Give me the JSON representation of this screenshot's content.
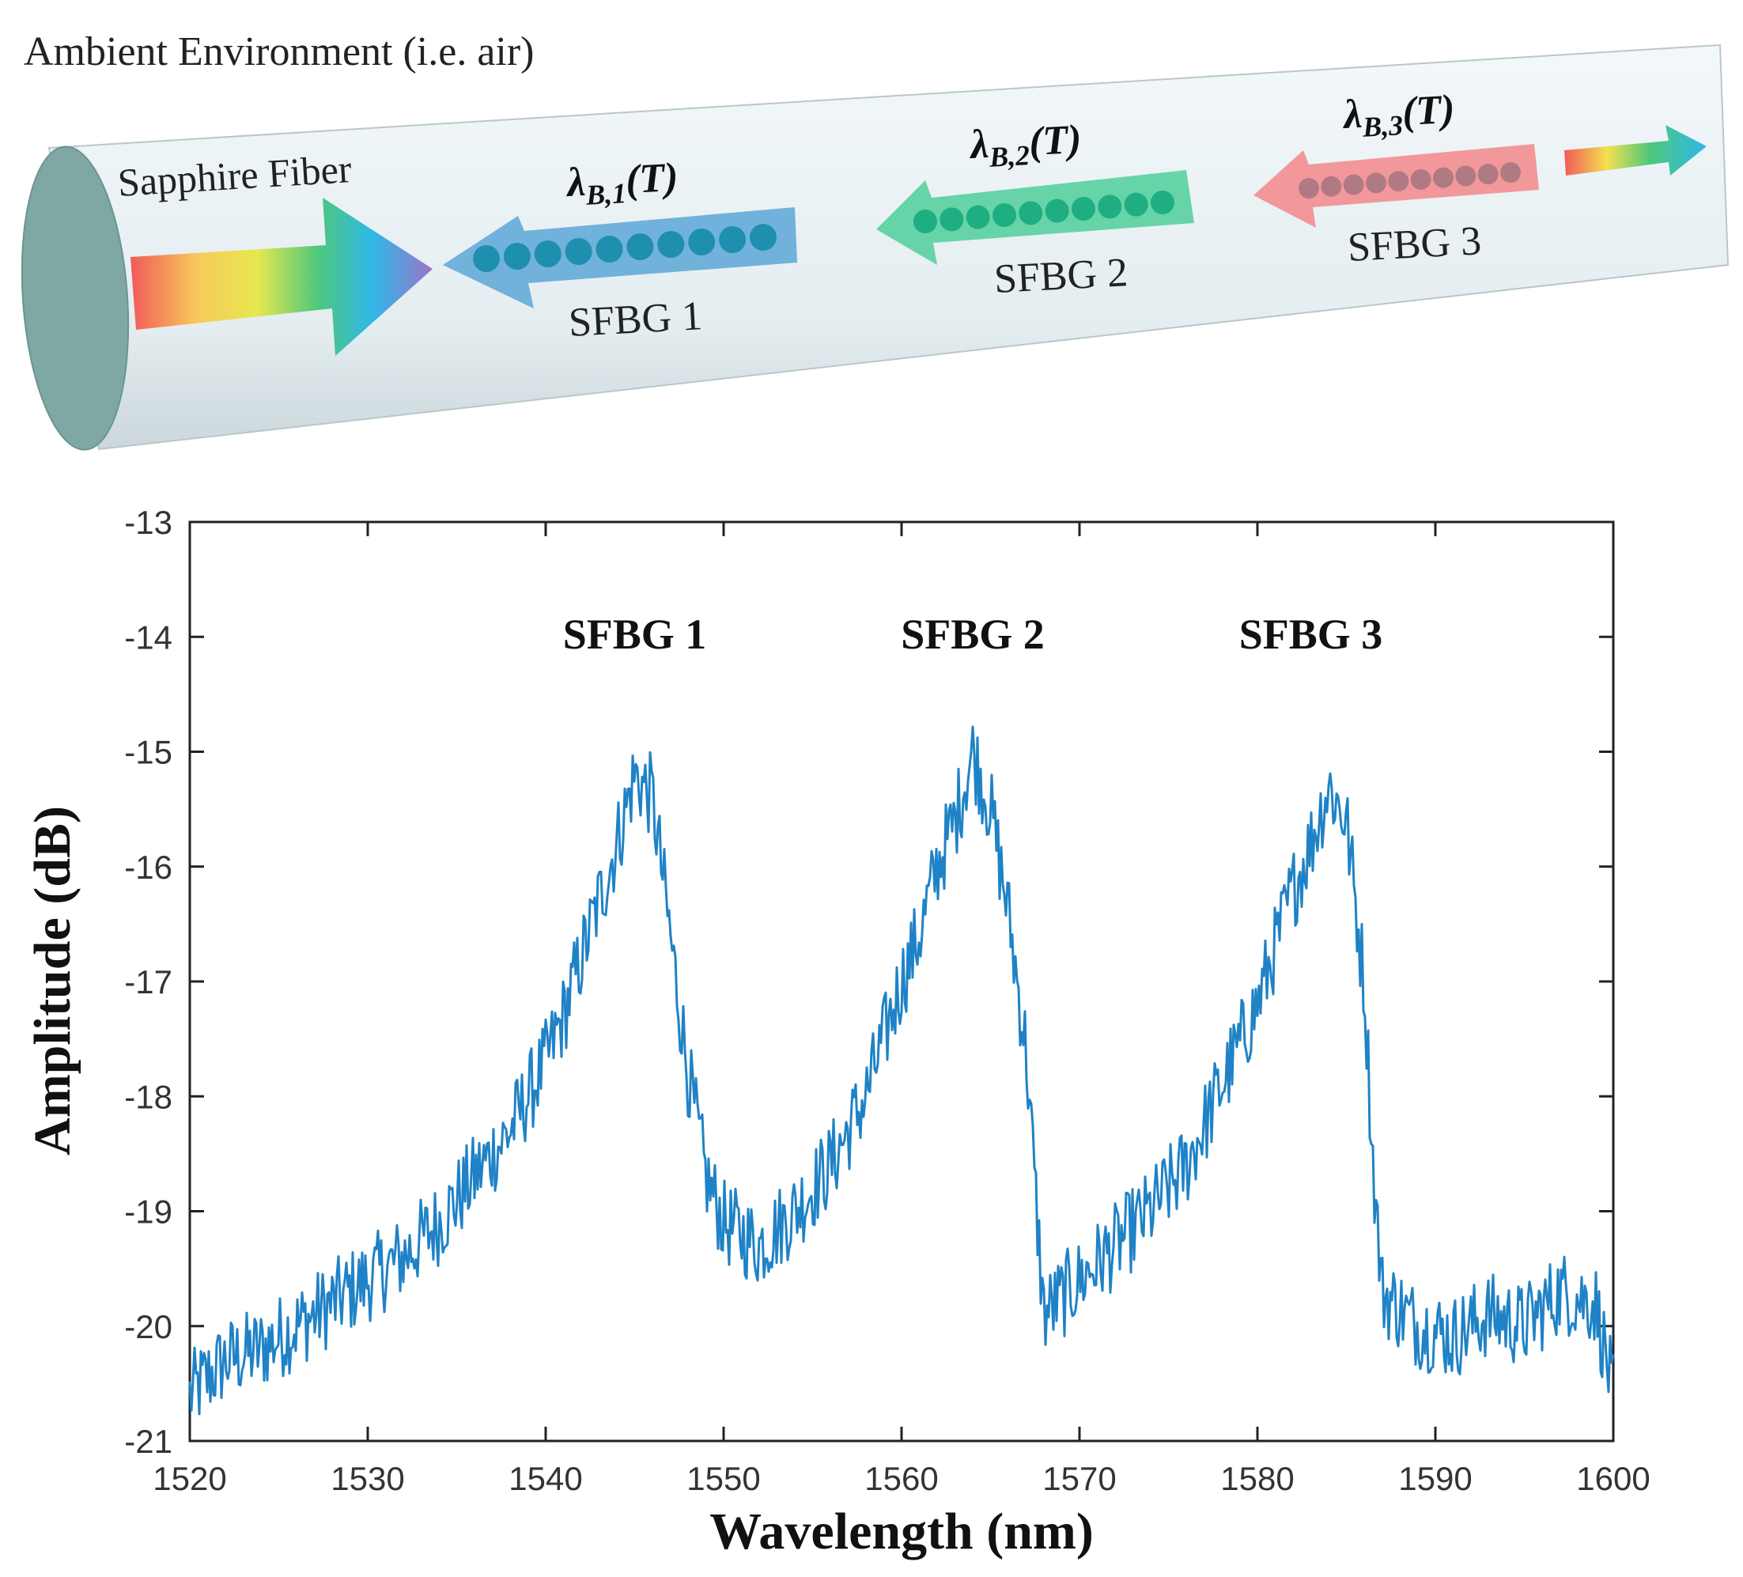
{
  "diagram": {
    "environment_label": "Ambient Environment (i.e. air)",
    "fiber_label": "Sapphire Fiber",
    "gratings": [
      {
        "label": "SFBG 1",
        "symbol": "λ",
        "subscript": "B,1",
        "arg": "(T)",
        "color": "#5aa7d6"
      },
      {
        "label": "SFBG 2",
        "symbol": "λ",
        "subscript": "B,2",
        "arg": "(T)",
        "color": "#4fcf9a"
      },
      {
        "label": "SFBG 3",
        "symbol": "λ",
        "subscript": "B,3",
        "arg": "(T)",
        "color": "#f3878a"
      }
    ],
    "fiber_color": "#e7eff2",
    "fiber_end_color": "#7fa8a4"
  },
  "chart_data": {
    "type": "line",
    "xlabel": "Wavelength (nm)",
    "ylabel": "Amplitude (dB)",
    "xlim": [
      1520,
      1600
    ],
    "ylim": [
      -21,
      -13
    ],
    "xticks": [
      "1520",
      "1530",
      "1540",
      "1550",
      "1560",
      "1570",
      "1580",
      "1590",
      "1600"
    ],
    "yticks": [
      "-13",
      "-14",
      "-15",
      "-16",
      "-17",
      "-18",
      "-19",
      "-20",
      "-21"
    ],
    "grid": false,
    "line_color": "#1f82c6",
    "annotations": [
      {
        "text": "SFBG 1",
        "x": 1545,
        "y": -14.1
      },
      {
        "text": "SFBG 2",
        "x": 1564,
        "y": -14.1
      },
      {
        "text": "SFBG 3",
        "x": 1583,
        "y": -14.1
      }
    ],
    "series": [
      {
        "name": "spectrum",
        "x": [
          1520,
          1522,
          1524,
          1526,
          1528,
          1530,
          1532,
          1534,
          1536,
          1538,
          1540,
          1541,
          1542,
          1543,
          1544,
          1545,
          1546,
          1547,
          1548,
          1549,
          1550,
          1552,
          1554,
          1556,
          1558,
          1560,
          1561,
          1562,
          1563,
          1564,
          1565,
          1566,
          1567,
          1567.5,
          1568,
          1570,
          1572,
          1574,
          1576,
          1578,
          1580,
          1581,
          1582,
          1583,
          1584,
          1585,
          1586,
          1586.5,
          1587,
          1589,
          1591,
          1593,
          1595,
          1597,
          1599,
          1600
        ],
        "values": [
          -20.6,
          -20.3,
          -20.2,
          -20.0,
          -19.8,
          -19.6,
          -19.4,
          -19.1,
          -18.7,
          -18.3,
          -17.7,
          -17.3,
          -16.8,
          -16.3,
          -15.8,
          -15.2,
          -15.4,
          -16.6,
          -17.8,
          -18.7,
          -19.1,
          -19.3,
          -19.0,
          -18.6,
          -18.0,
          -17.0,
          -16.6,
          -16.0,
          -15.6,
          -15.0,
          -15.5,
          -16.4,
          -17.6,
          -18.8,
          -19.9,
          -19.6,
          -19.3,
          -19.0,
          -18.6,
          -17.9,
          -17.2,
          -16.7,
          -16.2,
          -15.8,
          -15.3,
          -15.6,
          -17.0,
          -18.6,
          -19.7,
          -20.0,
          -20.1,
          -19.9,
          -20.0,
          -19.7,
          -19.8,
          -20.6
        ]
      }
    ]
  }
}
